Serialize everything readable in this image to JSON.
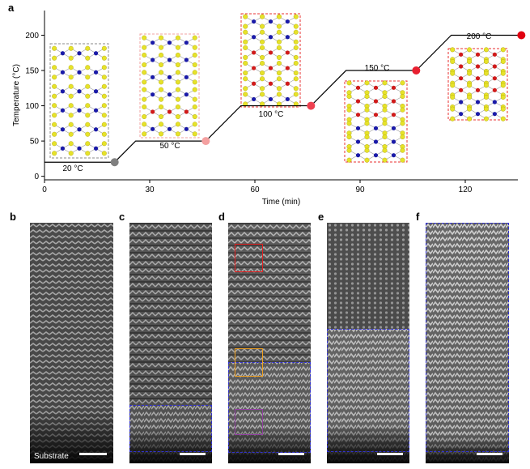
{
  "panel_labels": [
    "a",
    "b",
    "c",
    "d",
    "e",
    "f"
  ],
  "substrate_label": "Substrate",
  "chart_data": {
    "type": "line",
    "xlabel": "Time (min)",
    "ylabel": "Temperature (°C)",
    "xlim": [
      0,
      135
    ],
    "ylim": [
      -5,
      235
    ],
    "xticks": [
      0,
      30,
      60,
      90,
      120
    ],
    "yticks": [
      0,
      50,
      100,
      150,
      200
    ],
    "grid": false,
    "series": [
      {
        "x": [
          0,
          20,
          26,
          46,
          56,
          76,
          86,
          106,
          116,
          136
        ],
        "y": [
          20,
          20,
          50,
          50,
          100,
          100,
          150,
          150,
          200,
          200
        ]
      }
    ],
    "markers": [
      {
        "x": 20,
        "y": 20,
        "color": "#808080"
      },
      {
        "x": 46,
        "y": 50,
        "color": "#f4a0a0"
      },
      {
        "x": 76,
        "y": 100,
        "color": "#ee4050"
      },
      {
        "x": 106,
        "y": 150,
        "color": "#e82030"
      },
      {
        "x": 136,
        "y": 200,
        "color": "#e00010"
      }
    ],
    "annotations": [
      "20 °C",
      "50 °C",
      "100 °C",
      "150 °C",
      "200 °C"
    ]
  },
  "colors": {
    "sulfur": "#e6e22a",
    "metal_blue": "#1a1aa8",
    "metal_red": "#d01a1a",
    "box_grey": "#888888",
    "box_pink": "#f0a0a0",
    "box_red": "#e83030",
    "roi_red": "#e02020",
    "roi_orange": "#f0a020",
    "roi_purple": "#9040a0",
    "region_blue": "#3030d0"
  }
}
